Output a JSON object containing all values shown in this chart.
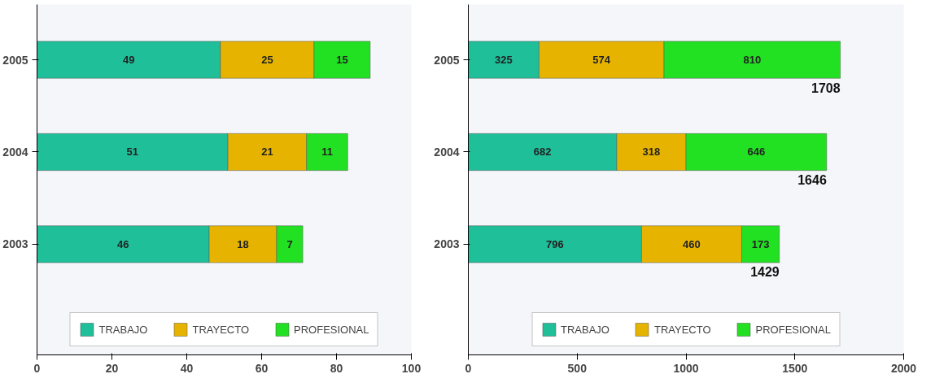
{
  "chart_data": [
    {
      "type": "bar",
      "orientation": "horizontal",
      "stacked": true,
      "categories": [
        "2005",
        "2004",
        "2003"
      ],
      "series": [
        {
          "name": "TRABAJO",
          "color": "#1fbf9a",
          "values": [
            49,
            51,
            46
          ]
        },
        {
          "name": "TRAYECTO",
          "color": "#e6b400",
          "values": [
            25,
            21,
            18
          ]
        },
        {
          "name": "PROFESIONAL",
          "color": "#22e022",
          "values": [
            15,
            11,
            7
          ]
        }
      ],
      "xlim": [
        0,
        100
      ],
      "xticks": [
        0,
        20,
        40,
        60,
        80,
        100
      ],
      "data_labels": true,
      "legend": "bottom",
      "grid": false
    },
    {
      "type": "bar",
      "orientation": "horizontal",
      "stacked": true,
      "categories": [
        "2005",
        "2004",
        "2003"
      ],
      "series": [
        {
          "name": "TRABAJO",
          "color": "#1fbf9a",
          "values": [
            325,
            682,
            796
          ]
        },
        {
          "name": "TRAYECTO",
          "color": "#e6b400",
          "values": [
            574,
            318,
            460
          ]
        },
        {
          "name": "PROFESIONAL",
          "color": "#22e022",
          "values": [
            810,
            646,
            173
          ]
        }
      ],
      "xlim": [
        0,
        2000
      ],
      "xticks": [
        0,
        500,
        1000,
        1500,
        2000
      ],
      "data_labels": true,
      "totals": [
        "1708",
        "1646",
        "1429"
      ],
      "legend": "bottom",
      "grid": false
    }
  ]
}
